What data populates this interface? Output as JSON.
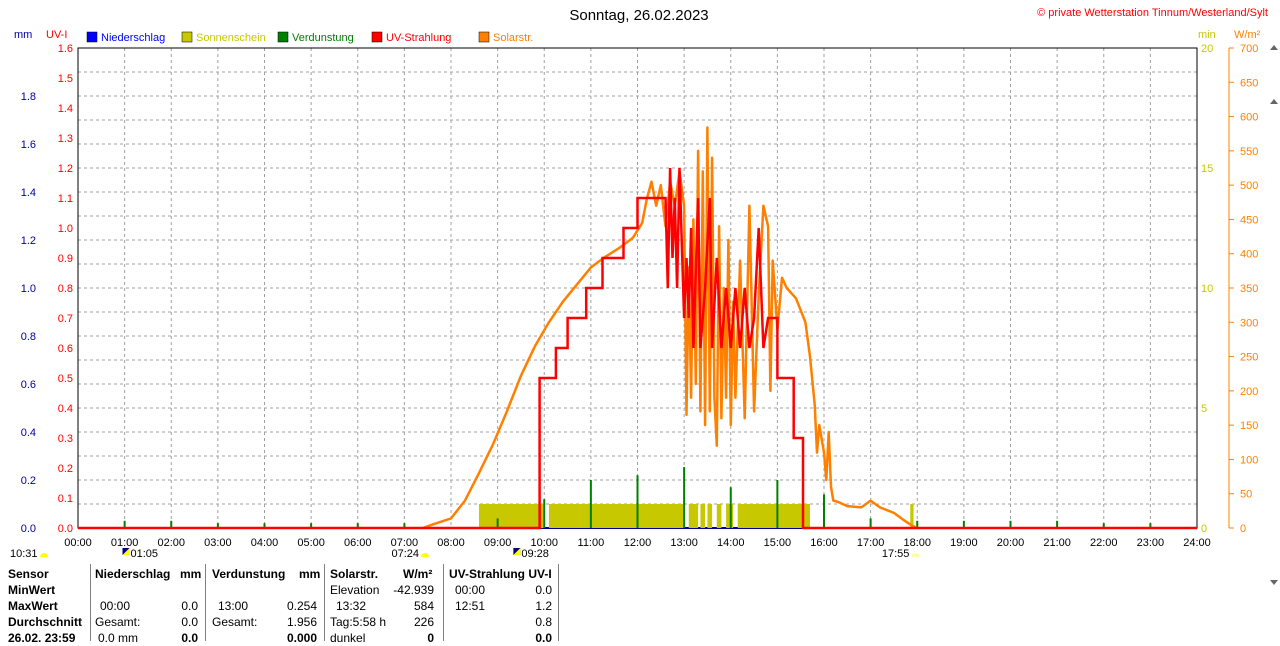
{
  "title": "Sonntag, 26.02.2023",
  "copyright": "© private Wetterstation Tinnum/Westerland/Sylt",
  "units": {
    "left1": "mm",
    "left2": "UV-I",
    "right1": "min",
    "right2": "W/m²"
  },
  "legend": [
    {
      "label": "Niederschlag",
      "color": "#0000ff"
    },
    {
      "label": "Sonnenschein",
      "color": "#c8c800"
    },
    {
      "label": "Verdunstung",
      "color": "#008000"
    },
    {
      "label": "UV-Strahlung",
      "color": "#ff0000"
    },
    {
      "label": "Solarstr.",
      "color": "#ff8000"
    }
  ],
  "axis_labels": {
    "mm": [
      "0.0",
      "0.2",
      "0.4",
      "0.6",
      "0.8",
      "1.0",
      "1.2",
      "1.4",
      "1.6",
      "1.8"
    ],
    "uv": [
      "0.0",
      "0.1",
      "0.2",
      "0.3",
      "0.4",
      "0.5",
      "0.6",
      "0.7",
      "0.8",
      "0.9",
      "1.0",
      "1.1",
      "1.2",
      "1.3",
      "1.4",
      "1.5",
      "1.6"
    ],
    "min": [
      "0",
      "5",
      "10",
      "15",
      "20"
    ],
    "wm2": [
      "0",
      "50",
      "100",
      "150",
      "200",
      "250",
      "300",
      "350",
      "400",
      "450",
      "500",
      "550",
      "600",
      "650",
      "700"
    ],
    "hours": [
      "00:00",
      "01:00",
      "02:00",
      "03:00",
      "04:00",
      "05:00",
      "06:00",
      "07:00",
      "08:00",
      "09:00",
      "10:00",
      "11:00",
      "12:00",
      "13:00",
      "14:00",
      "15:00",
      "16:00",
      "17:00",
      "18:00",
      "19:00",
      "20:00",
      "21:00",
      "22:00",
      "23:00",
      "24:00"
    ]
  },
  "events": [
    {
      "time": "10:31",
      "label": "10:31"
    },
    {
      "time": "01:05",
      "label": "01:05"
    },
    {
      "time": "07:24",
      "label": "07:24"
    },
    {
      "time": "09:28",
      "label": "09:28"
    },
    {
      "time": "17:55",
      "label": "17:55"
    }
  ],
  "chart_data": {
    "type": "line",
    "title": "Sonntag, 26.02.2023",
    "x_range": [
      "00:00",
      "24:00"
    ],
    "ylim_mm": [
      0,
      2.0
    ],
    "ylim_uv": [
      0,
      1.6
    ],
    "ylim_min": [
      0,
      20
    ],
    "ylim_wm2": [
      0,
      700
    ],
    "grid": true,
    "legend_position": "top-left",
    "series": [
      {
        "name": "Solarstr.",
        "unit": "W/m²",
        "axis": "right-outer",
        "color": "#ff8000",
        "points": [
          [
            7.4,
            0
          ],
          [
            7.6,
            5
          ],
          [
            8.0,
            14
          ],
          [
            8.3,
            40
          ],
          [
            8.6,
            80
          ],
          [
            8.9,
            122
          ],
          [
            9.2,
            170
          ],
          [
            9.5,
            222
          ],
          [
            9.8,
            265
          ],
          [
            10.1,
            300
          ],
          [
            10.4,
            330
          ],
          [
            10.7,
            355
          ],
          [
            11.0,
            380
          ],
          [
            11.3,
            395
          ],
          [
            11.6,
            408
          ],
          [
            11.9,
            423
          ],
          [
            12.1,
            445
          ],
          [
            12.2,
            480
          ],
          [
            12.3,
            505
          ],
          [
            12.4,
            470
          ],
          [
            12.5,
            500
          ],
          [
            12.6,
            440
          ],
          [
            12.7,
            505
          ],
          [
            12.8,
            470
          ],
          [
            12.9,
            520
          ],
          [
            13.0,
            470
          ],
          [
            13.05,
            165
          ],
          [
            13.1,
            380
          ],
          [
            13.15,
            190
          ],
          [
            13.2,
            450
          ],
          [
            13.25,
            210
          ],
          [
            13.3,
            550
          ],
          [
            13.35,
            170
          ],
          [
            13.4,
            520
          ],
          [
            13.45,
            150
          ],
          [
            13.5,
            584
          ],
          [
            13.55,
            170
          ],
          [
            13.6,
            540
          ],
          [
            13.65,
            190
          ],
          [
            13.7,
            120
          ],
          [
            13.75,
            440
          ],
          [
            13.8,
            160
          ],
          [
            13.85,
            350
          ],
          [
            13.9,
            190
          ],
          [
            13.95,
            420
          ],
          [
            14.0,
            150
          ],
          [
            14.05,
            330
          ],
          [
            14.1,
            190
          ],
          [
            14.2,
            390
          ],
          [
            14.3,
            160
          ],
          [
            14.4,
            470
          ],
          [
            14.5,
            170
          ],
          [
            14.6,
            340
          ],
          [
            14.7,
            470
          ],
          [
            14.8,
            440
          ],
          [
            14.85,
            200
          ],
          [
            14.9,
            390
          ],
          [
            15.0,
            290
          ],
          [
            15.1,
            365
          ],
          [
            15.2,
            350
          ],
          [
            15.4,
            335
          ],
          [
            15.6,
            300
          ],
          [
            15.7,
            250
          ],
          [
            15.8,
            180
          ],
          [
            15.85,
            110
          ],
          [
            15.9,
            150
          ],
          [
            16.0,
            110
          ],
          [
            16.05,
            70
          ],
          [
            16.1,
            140
          ],
          [
            16.15,
            60
          ],
          [
            16.2,
            40
          ],
          [
            16.3,
            38
          ],
          [
            16.5,
            32
          ],
          [
            16.8,
            30
          ],
          [
            17.0,
            40
          ],
          [
            17.2,
            30
          ],
          [
            17.5,
            22
          ],
          [
            17.7,
            12
          ],
          [
            17.9,
            3
          ],
          [
            18.0,
            0
          ]
        ]
      },
      {
        "name": "UV-Strahlung",
        "unit": "UV-I",
        "axis": "left-inner",
        "color": "#ff0000",
        "points": [
          [
            0,
            0
          ],
          [
            9.9,
            0
          ],
          [
            9.9,
            0.5
          ],
          [
            10.25,
            0.5
          ],
          [
            10.25,
            0.6
          ],
          [
            10.5,
            0.6
          ],
          [
            10.5,
            0.7
          ],
          [
            10.9,
            0.7
          ],
          [
            10.9,
            0.8
          ],
          [
            11.25,
            0.8
          ],
          [
            11.25,
            0.9
          ],
          [
            11.7,
            0.9
          ],
          [
            11.7,
            1.0
          ],
          [
            12.0,
            1.0
          ],
          [
            12.0,
            1.1
          ],
          [
            12.6,
            1.1
          ],
          [
            12.65,
            0.8
          ],
          [
            12.7,
            1.2
          ],
          [
            12.75,
            0.9
          ],
          [
            12.8,
            1.1
          ],
          [
            12.85,
            0.8
          ],
          [
            12.9,
            1.2
          ],
          [
            13.0,
            0.7
          ],
          [
            13.05,
            0.9
          ],
          [
            13.1,
            0.7
          ],
          [
            13.15,
            1.0
          ],
          [
            13.2,
            0.6
          ],
          [
            13.3,
            1.1
          ],
          [
            13.35,
            0.6
          ],
          [
            13.45,
            0.8
          ],
          [
            13.55,
            1.1
          ],
          [
            13.6,
            0.6
          ],
          [
            13.7,
            0.9
          ],
          [
            13.8,
            0.6
          ],
          [
            13.9,
            0.8
          ],
          [
            14.0,
            0.6
          ],
          [
            14.1,
            0.8
          ],
          [
            14.2,
            0.6
          ],
          [
            14.3,
            0.8
          ],
          [
            14.4,
            0.6
          ],
          [
            14.5,
            0.7
          ],
          [
            14.6,
            1.0
          ],
          [
            14.7,
            0.6
          ],
          [
            14.8,
            0.7
          ],
          [
            15.0,
            0.7
          ],
          [
            15.0,
            0.5
          ],
          [
            15.35,
            0.5
          ],
          [
            15.35,
            0.3
          ],
          [
            15.55,
            0.3
          ],
          [
            15.55,
            0
          ],
          [
            24,
            0
          ]
        ]
      },
      {
        "name": "Sonnenschein",
        "unit": "min",
        "axis": "right-inner",
        "color": "#c8c800",
        "blocks": [
          [
            8.6,
            10.0,
            1
          ],
          [
            10.1,
            13.0,
            1
          ],
          [
            13.1,
            13.3,
            1
          ],
          [
            13.35,
            13.45,
            1
          ],
          [
            13.5,
            13.6,
            1
          ],
          [
            13.7,
            13.8,
            1
          ],
          [
            13.9,
            14.05,
            1
          ],
          [
            14.15,
            15.7,
            1
          ],
          [
            17.85,
            17.92,
            1
          ]
        ]
      },
      {
        "name": "Verdunstung",
        "unit": "mm",
        "axis": "left-outer",
        "color": "#008000",
        "spikes": [
          [
            1.0,
            0.03
          ],
          [
            2.0,
            0.03
          ],
          [
            3.0,
            0.02
          ],
          [
            4.0,
            0.02
          ],
          [
            5.0,
            0.02
          ],
          [
            6.0,
            0.02
          ],
          [
            7.0,
            0.02
          ],
          [
            9.0,
            0.04
          ],
          [
            10.0,
            0.12
          ],
          [
            11.0,
            0.2
          ],
          [
            12.0,
            0.22
          ],
          [
            13.0,
            0.254
          ],
          [
            14.0,
            0.17
          ],
          [
            15.0,
            0.2
          ],
          [
            16.0,
            0.14
          ],
          [
            17.0,
            0.04
          ],
          [
            18.0,
            0.03
          ],
          [
            19.0,
            0.03
          ],
          [
            20.0,
            0.03
          ],
          [
            21.0,
            0.03
          ],
          [
            22.0,
            0.02
          ],
          [
            23.0,
            0.02
          ]
        ]
      },
      {
        "name": "Niederschlag",
        "unit": "mm",
        "axis": "left-outer",
        "color": "#0000ff",
        "points": []
      }
    ]
  },
  "table": {
    "header": {
      "sensor": "Sensor",
      "niederschlag": "Niederschlag",
      "mm1": "mm",
      "verdunstung": "Verdunstung",
      "mm2": "mm",
      "solar": "Solarstr.",
      "wm2": "W/m²",
      "uv": "UV-Strahlung UV-I"
    },
    "rows": {
      "minwert": {
        "label": "MinWert",
        "elev_label": "Elevation",
        "elev_val": "-42.939",
        "uv_time": "00:00",
        "uv_val": "0.0"
      },
      "maxwert": {
        "label": "MaxWert",
        "n_time": "00:00",
        "n_val": "0.0",
        "v_time": "13:00",
        "v_val": "0.254",
        "s_time": "13:32",
        "s_val": "584",
        "uv_time": "12:51",
        "uv_val": "1.2"
      },
      "durchschnitt": {
        "label": "Durchschnitt",
        "n_gesamt": "Gesamt:",
        "n_val": "0.0",
        "v_gesamt": "Gesamt:",
        "v_val": "1.956",
        "s_tag": "Tag:5:58 h",
        "s_val": "226",
        "uv_val": "0.8"
      },
      "last": {
        "label": "26.02. 23:59",
        "n_val": "0.0 mm",
        "n_b": "0.0",
        "v_b": "0.000",
        "s_label": "dunkel",
        "s_b": "0",
        "uv_b": "0.0"
      }
    }
  }
}
